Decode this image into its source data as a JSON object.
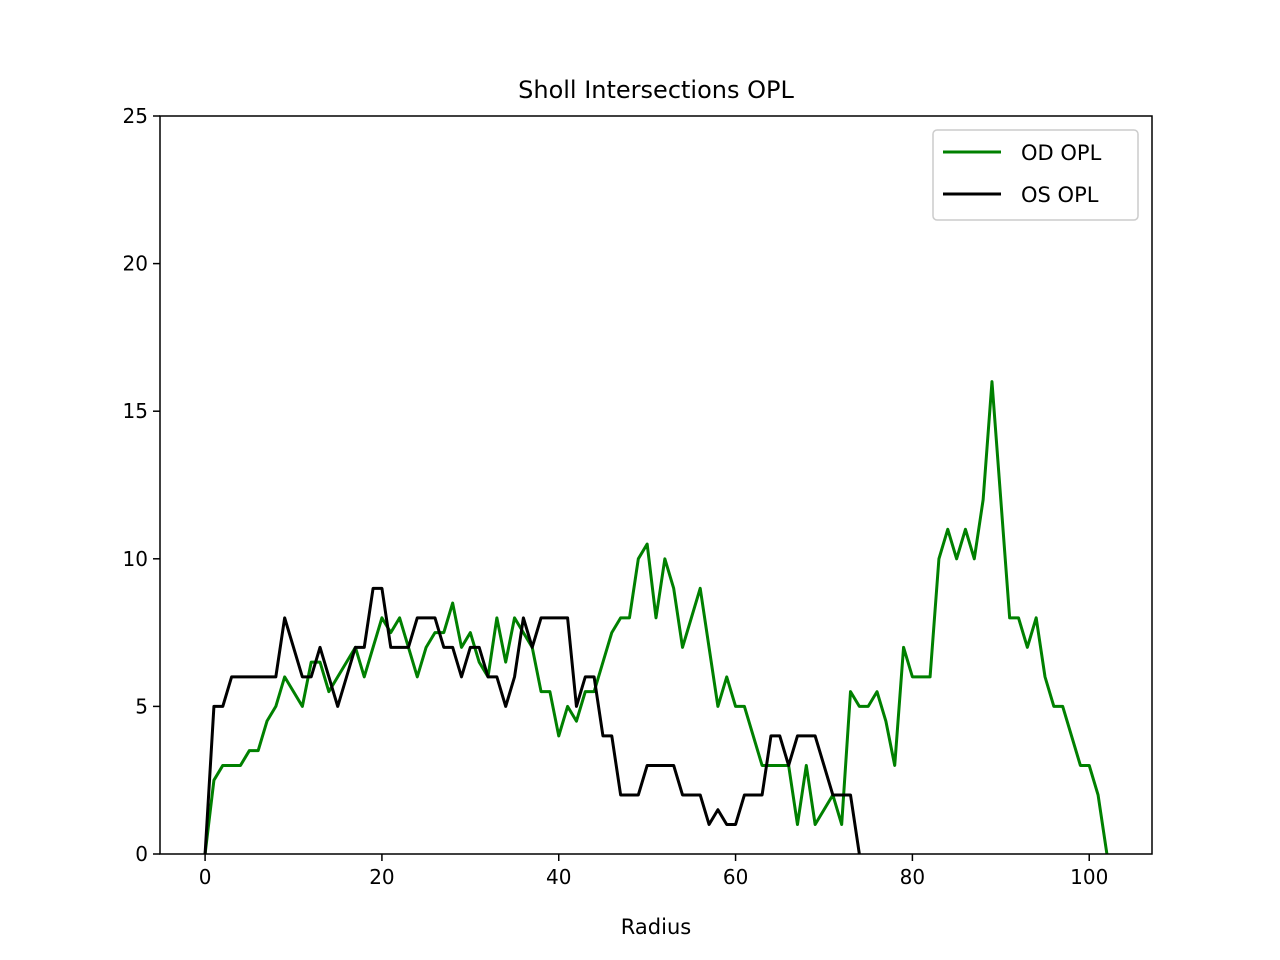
{
  "chart_data": {
    "type": "line",
    "title": "Sholl Intersections OPL",
    "xlabel": "Radius",
    "ylabel": "",
    "xlim": [
      -5.1,
      107.1
    ],
    "ylim": [
      0,
      25
    ],
    "xticks": [
      0,
      20,
      40,
      60,
      80,
      100
    ],
    "yticks": [
      0,
      5,
      10,
      15,
      20,
      25
    ],
    "grid": false,
    "legend_position": "top-right",
    "series": [
      {
        "name": "OD OPL",
        "color": "#008000",
        "x": [
          0,
          1,
          2,
          3,
          4,
          5,
          6,
          7,
          8,
          9,
          10,
          11,
          12,
          13,
          14,
          15,
          16,
          17,
          18,
          19,
          20,
          21,
          22,
          23,
          24,
          25,
          26,
          27,
          28,
          29,
          30,
          31,
          32,
          33,
          34,
          35,
          36,
          37,
          38,
          39,
          40,
          41,
          42,
          43,
          44,
          45,
          46,
          47,
          48,
          49,
          50,
          51,
          52,
          53,
          54,
          55,
          56,
          57,
          58,
          59,
          60,
          61,
          62,
          63,
          64,
          65,
          66,
          67,
          68,
          69,
          70,
          71,
          72,
          73,
          74,
          75,
          76,
          77,
          78,
          79,
          80,
          81,
          82,
          83,
          84,
          85,
          86,
          87,
          88,
          89,
          90,
          91,
          92,
          93,
          94,
          95,
          96,
          97,
          98,
          99,
          100,
          101,
          102
        ],
        "y": [
          0,
          2.5,
          3,
          3,
          3,
          3.5,
          3.5,
          4.5,
          5,
          6,
          5.5,
          5,
          6.5,
          6.5,
          5.5,
          6,
          6.5,
          7,
          6,
          7,
          8,
          7.5,
          8,
          7,
          6,
          7,
          7.5,
          7.5,
          8.5,
          7,
          7.5,
          6.5,
          6,
          8,
          6.5,
          8,
          7.5,
          7,
          5.5,
          5.5,
          4,
          5,
          4.5,
          5.5,
          5.5,
          6.5,
          7.5,
          8,
          8,
          10,
          10.5,
          8,
          10,
          9,
          7,
          8,
          9,
          7,
          5,
          6,
          5,
          5,
          4,
          3,
          3,
          3,
          3,
          1,
          3,
          1,
          1.5,
          2,
          1,
          5.5,
          5,
          5,
          5.5,
          4.5,
          3,
          7,
          6,
          6,
          6,
          10,
          11,
          10,
          11,
          10,
          12,
          16,
          12,
          8,
          8,
          7,
          8,
          6,
          5,
          5,
          4,
          3,
          3,
          2,
          0
        ]
      },
      {
        "name": "OS OPL",
        "color": "#000000",
        "x": [
          0,
          1,
          2,
          3,
          4,
          5,
          6,
          7,
          8,
          9,
          10,
          11,
          12,
          13,
          14,
          15,
          16,
          17,
          18,
          19,
          20,
          21,
          22,
          23,
          24,
          25,
          26,
          27,
          28,
          29,
          30,
          31,
          32,
          33,
          34,
          35,
          36,
          37,
          38,
          39,
          40,
          41,
          42,
          43,
          44,
          45,
          46,
          47,
          48,
          49,
          50,
          51,
          52,
          53,
          54,
          55,
          56,
          57,
          58,
          59,
          60,
          61,
          62,
          63,
          64,
          65,
          66,
          67,
          68,
          69,
          70,
          71,
          72,
          73,
          74
        ],
        "y": [
          0,
          5,
          5,
          6,
          6,
          6,
          6,
          6,
          6,
          8,
          7,
          6,
          6,
          7,
          6,
          5,
          6,
          7,
          7,
          9,
          9,
          7,
          7,
          7,
          8,
          8,
          8,
          7,
          7,
          6,
          7,
          7,
          6,
          6,
          5,
          6,
          8,
          7,
          8,
          8,
          8,
          8,
          5,
          6,
          6,
          4,
          4,
          2,
          2,
          2,
          3,
          3,
          3,
          3,
          2,
          2,
          2,
          1,
          1.5,
          1,
          1,
          2,
          2,
          2,
          4,
          4,
          3,
          4,
          4,
          4,
          3,
          2,
          2,
          2,
          0
        ]
      }
    ]
  }
}
